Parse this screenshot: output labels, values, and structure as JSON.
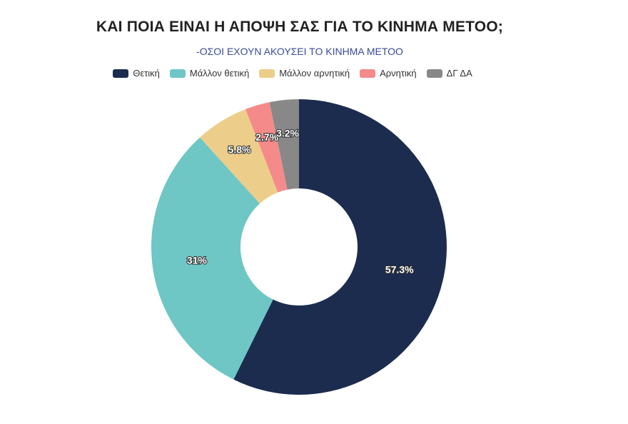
{
  "chart_data": {
    "type": "pie",
    "title": "ΚΑΙ ΠΟΙΑ ΕΙΝΑΙ Η ΑΠΟΨΗ ΣΑΣ ΓΙΑ ΤΟ ΚΙΝΗΜΑ ΜΕΤΟΟ;",
    "subtitle": "-ΟΣΟΙ ΕΧΟΥΝ ΑΚΟΥΣΕΙ ΤΟ ΚΙΝΗΜΑ ΜΕΤΟΟ",
    "donut": true,
    "legend_position": "top",
    "categories": [
      "Θετική",
      "Μάλλον θετική",
      "Μάλλον αρνητική",
      "Αρνητική",
      "ΔΓ ΔΑ"
    ],
    "values": [
      57.3,
      31,
      5.8,
      2.7,
      3.2
    ],
    "labels": [
      "57.3%",
      "31%",
      "5.8%",
      "2.7%",
      "3.2%"
    ],
    "colors": [
      "#1b2c4e",
      "#6ec7c4",
      "#ecce8a",
      "#f58a8a",
      "#888888"
    ]
  }
}
